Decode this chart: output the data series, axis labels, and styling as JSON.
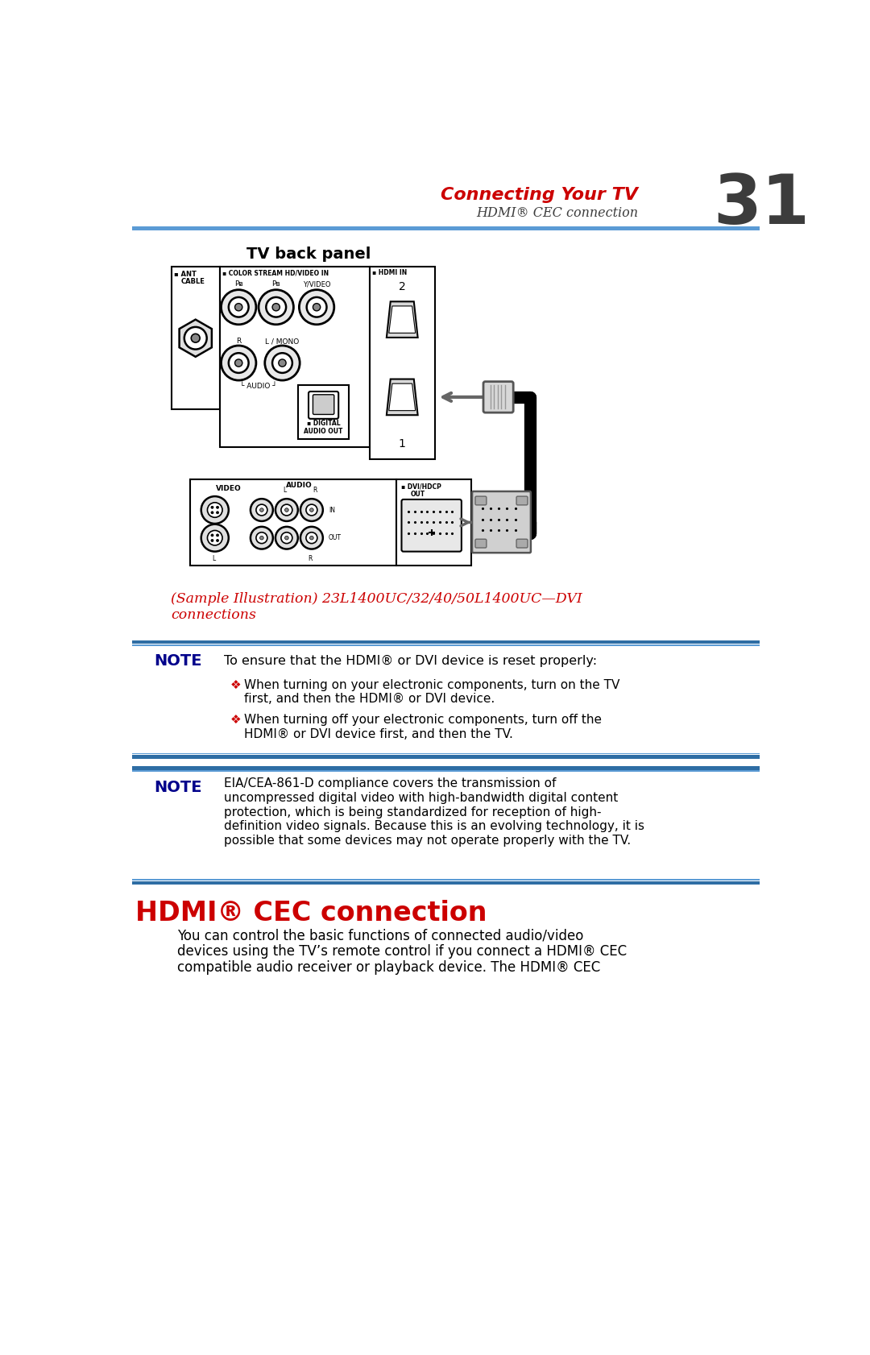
{
  "page_title_red": "Connecting Your TV",
  "page_number": "31",
  "page_subtitle": "HDMI® CEC connection",
  "blue_line_color": "#5b9bd5",
  "tv_back_panel_label": "TV back panel",
  "hdmi2_label": "2",
  "hdmi1_label": "1",
  "sample_caption_line1": "(Sample Illustration) 23L1400UC/32/40/50L1400UC—DVI",
  "sample_caption_line2": "connections",
  "sample_caption_color": "#cc0000",
  "note_label": "NOTE",
  "note_color": "#00008b",
  "note1_text": "To ensure that the HDMI® or DVI device is reset properly:",
  "bullet1_line1": "When turning on your electronic components, turn on the TV",
  "bullet1_line2": "first, and then the HDMI® or DVI device.",
  "bullet2_line1": "When turning off your electronic components, turn off the",
  "bullet2_line2": "HDMI® or DVI device first, and then the TV.",
  "note2_line1": "EIA/CEA-861-D compliance covers the transmission of",
  "note2_line2": "uncompressed digital video with high-bandwidth digital content",
  "note2_line3": "protection, which is being standardized for reception of high-",
  "note2_line4": "definition video signals. Because this is an evolving technology, it is",
  "note2_line5": "possible that some devices may not operate properly with the TV.",
  "hdmi_cec_title": "HDMI® CEC connection",
  "hdmi_cec_title_color": "#cc0000",
  "hdmi_cec_body_line1": "You can control the basic functions of connected audio/video",
  "hdmi_cec_body_line2": "devices using the TV’s remote control if you connect a HDMI® CEC",
  "hdmi_cec_body_line3": "compatible audio receiver or playback device. The HDMI® CEC",
  "background": "#ffffff"
}
